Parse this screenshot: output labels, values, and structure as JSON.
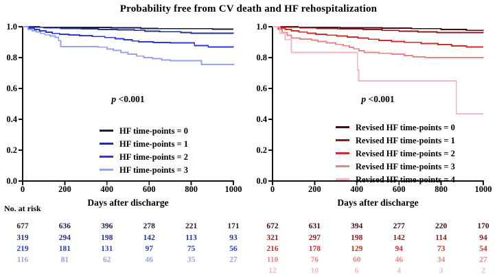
{
  "title": "Probability free from CV death and HF rehospitalization",
  "chart_data": [
    {
      "type": "line",
      "km_step": true,
      "panel": "left",
      "xlabel": "Days after discharge",
      "ylabel": "",
      "at_risk_label": "No. at risk",
      "annotation_italic": "p",
      "annotation_text": " <0.001",
      "xlim": [
        0,
        1000
      ],
      "ylim": [
        0.0,
        1.0
      ],
      "xticks": [
        "0",
        "200",
        "400",
        "600",
        "800",
        "1000"
      ],
      "yticks": [
        "1.0",
        "0.8",
        "0.6",
        "0.4",
        "0.2",
        "0.0"
      ],
      "grid": false,
      "legend_position": "lower right",
      "series": [
        {
          "name": "HF time-points = 0",
          "color": "#1b1b40",
          "at_risk": [
            677,
            636,
            396,
            278,
            221,
            171
          ],
          "points": [
            [
              0,
              1.0
            ],
            [
              80,
              0.997
            ],
            [
              200,
              0.995
            ],
            [
              420,
              0.993
            ],
            [
              560,
              0.99
            ],
            [
              640,
              0.988
            ],
            [
              900,
              0.985
            ],
            [
              1000,
              0.985
            ]
          ]
        },
        {
          "name": "HF time-points = 1",
          "color": "#23308f",
          "at_risk": [
            319,
            294,
            198,
            142,
            113,
            93
          ],
          "points": [
            [
              0,
              1.0
            ],
            [
              50,
              0.997
            ],
            [
              100,
              0.993
            ],
            [
              180,
              0.99
            ],
            [
              280,
              0.987
            ],
            [
              360,
              0.983
            ],
            [
              450,
              0.98
            ],
            [
              530,
              0.977
            ],
            [
              580,
              0.972
            ],
            [
              650,
              0.968
            ],
            [
              750,
              0.962
            ],
            [
              800,
              0.958
            ],
            [
              1000,
              0.957
            ]
          ]
        },
        {
          "name": "HF time-points = 2",
          "color": "#2a3bd2",
          "at_risk": [
            219,
            181,
            131,
            97,
            75,
            56
          ],
          "points": [
            [
              0,
              1.0
            ],
            [
              30,
              0.991
            ],
            [
              55,
              0.982
            ],
            [
              80,
              0.973
            ],
            [
              110,
              0.964
            ],
            [
              140,
              0.957
            ],
            [
              175,
              0.951
            ],
            [
              220,
              0.947
            ],
            [
              270,
              0.942
            ],
            [
              330,
              0.937
            ],
            [
              390,
              0.93
            ],
            [
              440,
              0.923
            ],
            [
              480,
              0.916
            ],
            [
              520,
              0.908
            ],
            [
              550,
              0.902
            ],
            [
              620,
              0.898
            ],
            [
              700,
              0.895
            ],
            [
              815,
              0.878
            ],
            [
              880,
              0.87
            ],
            [
              1000,
              0.868
            ]
          ]
        },
        {
          "name": "HF time-points = 3",
          "color": "#9aa2e6",
          "at_risk": [
            116,
            81,
            62,
            46,
            35,
            27
          ],
          "points": [
            [
              0,
              1.0
            ],
            [
              25,
              0.983
            ],
            [
              45,
              0.974
            ],
            [
              65,
              0.966
            ],
            [
              85,
              0.957
            ],
            [
              105,
              0.948
            ],
            [
              130,
              0.94
            ],
            [
              155,
              0.931
            ],
            [
              170,
              0.91
            ],
            [
              180,
              0.872
            ],
            [
              360,
              0.868
            ],
            [
              400,
              0.855
            ],
            [
              430,
              0.847
            ],
            [
              465,
              0.833
            ],
            [
              500,
              0.822
            ],
            [
              540,
              0.81
            ],
            [
              575,
              0.8
            ],
            [
              615,
              0.793
            ],
            [
              660,
              0.785
            ],
            [
              700,
              0.78
            ],
            [
              848,
              0.755
            ],
            [
              1000,
              0.752
            ]
          ]
        }
      ]
    },
    {
      "type": "line",
      "km_step": true,
      "panel": "right",
      "xlabel": "Days after discharge",
      "ylabel": "",
      "annotation_italic": "p",
      "annotation_text": " <0.001",
      "xlim": [
        0,
        1000
      ],
      "ylim": [
        0.0,
        1.0
      ],
      "xticks": [
        "0",
        "200",
        "400",
        "600",
        "800",
        "1000"
      ],
      "yticks": [
        "1.0",
        "0.8",
        "0.6",
        "0.4",
        "0.2",
        "0.0"
      ],
      "grid": false,
      "legend_position": "lower right",
      "series": [
        {
          "name": "Revised HF time-points = 0",
          "color": "#3f0d12",
          "at_risk": [
            672,
            631,
            394,
            277,
            220,
            170
          ],
          "points": [
            [
              0,
              1.0
            ],
            [
              120,
              0.997
            ],
            [
              320,
              0.994
            ],
            [
              520,
              0.991
            ],
            [
              660,
              0.988
            ],
            [
              800,
              0.982
            ],
            [
              920,
              0.977
            ],
            [
              1000,
              0.976
            ]
          ]
        },
        {
          "name": "Revised HF time-points = 1",
          "color": "#8e1a1c",
          "at_risk": [
            321,
            297,
            198,
            142,
            114,
            94
          ],
          "points": [
            [
              0,
              1.0
            ],
            [
              60,
              0.997
            ],
            [
              130,
              0.993
            ],
            [
              210,
              0.99
            ],
            [
              310,
              0.986
            ],
            [
              430,
              0.982
            ],
            [
              520,
              0.977
            ],
            [
              600,
              0.972
            ],
            [
              690,
              0.967
            ],
            [
              780,
              0.963
            ],
            [
              1000,
              0.962
            ]
          ]
        },
        {
          "name": "Revised HF time-points = 2",
          "color": "#d42a2a",
          "at_risk": [
            216,
            178,
            129,
            94,
            73,
            54
          ],
          "points": [
            [
              0,
              1.0
            ],
            [
              30,
              0.991
            ],
            [
              60,
              0.982
            ],
            [
              90,
              0.974
            ],
            [
              125,
              0.966
            ],
            [
              165,
              0.958
            ],
            [
              205,
              0.951
            ],
            [
              255,
              0.946
            ],
            [
              305,
              0.94
            ],
            [
              355,
              0.933
            ],
            [
              405,
              0.926
            ],
            [
              455,
              0.919
            ],
            [
              505,
              0.912
            ],
            [
              565,
              0.905
            ],
            [
              625,
              0.899
            ],
            [
              705,
              0.892
            ],
            [
              785,
              0.885
            ],
            [
              850,
              0.875
            ],
            [
              920,
              0.87
            ],
            [
              1000,
              0.87
            ]
          ]
        },
        {
          "name": "Revised HF time-points = 3",
          "color": "#ea8585",
          "at_risk": [
            110,
            76,
            60,
            46,
            34,
            27
          ],
          "points": [
            [
              0,
              1.0
            ],
            [
              25,
              0.982
            ],
            [
              45,
              0.963
            ],
            [
              70,
              0.945
            ],
            [
              90,
              0.926
            ],
            [
              130,
              0.92
            ],
            [
              185,
              0.913
            ],
            [
              215,
              0.904
            ],
            [
              255,
              0.895
            ],
            [
              300,
              0.886
            ],
            [
              335,
              0.877
            ],
            [
              365,
              0.867
            ],
            [
              385,
              0.857
            ],
            [
              410,
              0.845
            ],
            [
              435,
              0.834
            ],
            [
              505,
              0.828
            ],
            [
              565,
              0.822
            ],
            [
              625,
              0.813
            ],
            [
              665,
              0.805
            ],
            [
              725,
              0.801
            ],
            [
              1000,
              0.8
            ]
          ]
        },
        {
          "name": "Revised HF time-points = 4",
          "color": "#f5b6be",
          "at_risk": [
            12,
            10,
            6,
            4,
            3,
            2
          ],
          "points": [
            [
              0,
              1.0
            ],
            [
              35,
              0.958
            ],
            [
              60,
              0.917
            ],
            [
              90,
              0.833
            ],
            [
              398,
              0.833
            ],
            [
              403,
              0.72
            ],
            [
              408,
              0.65
            ],
            [
              865,
              0.65
            ],
            [
              872,
              0.435
            ],
            [
              1000,
              0.435
            ]
          ]
        }
      ]
    }
  ]
}
